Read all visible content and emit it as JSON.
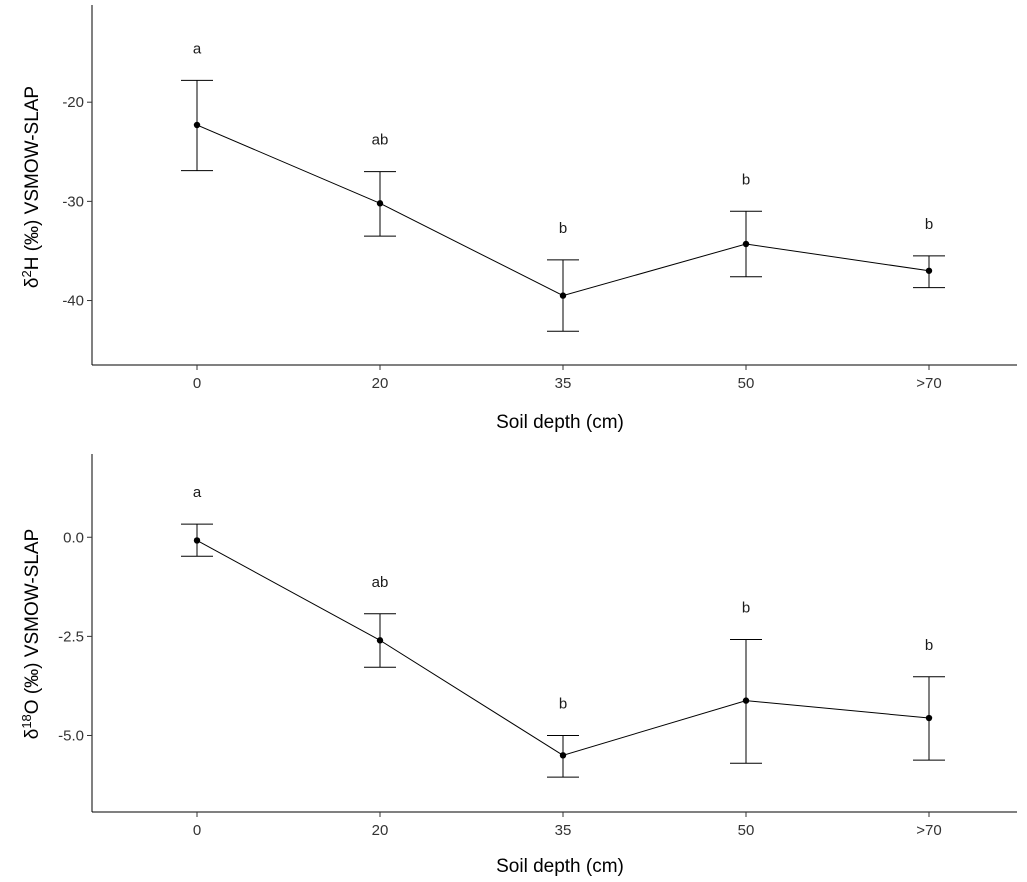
{
  "chart_data": [
    {
      "type": "line",
      "categories": [
        "0",
        "20",
        "35",
        "50",
        ">70"
      ],
      "values": [
        -22.3,
        -30.2,
        -39.5,
        -34.3,
        -37.0
      ],
      "error_upper": [
        -17.8,
        -27.0,
        -35.9,
        -31.0,
        -35.5
      ],
      "error_lower": [
        -26.9,
        -33.5,
        -43.1,
        -37.6,
        -38.7
      ],
      "significance_labels": [
        "a",
        "ab",
        "b",
        "b",
        "b"
      ],
      "xlabel": "Soil depth (cm)",
      "ylabel": {
        "prefix": "δ",
        "sup": "2",
        "rest": "H (‰) VSMOW-SLAP"
      },
      "yticks": [
        "-20",
        "-30",
        "-40"
      ],
      "ytick_values": [
        -20,
        -30,
        -40
      ],
      "ylim": [
        -46.5,
        -10.2
      ],
      "grid": false,
      "legend": "none"
    },
    {
      "type": "line",
      "categories": [
        "0",
        "20",
        "35",
        "50",
        ">70"
      ],
      "values": [
        -0.08,
        -2.6,
        -5.5,
        -4.12,
        -4.56
      ],
      "error_upper": [
        0.33,
        -1.93,
        -5.0,
        -2.58,
        -3.52
      ],
      "error_lower": [
        -0.48,
        -3.28,
        -6.05,
        -5.7,
        -5.62
      ],
      "significance_labels": [
        "a",
        "ab",
        "b",
        "b",
        "b"
      ],
      "xlabel": "Soil depth (cm)",
      "ylabel": {
        "prefix": "δ",
        "sup": "18",
        "rest": "O (‰) VSMOW-SLAP"
      },
      "yticks": [
        "0.0",
        "-2.5",
        "-5.0"
      ],
      "ytick_values": [
        0.0,
        -2.5,
        -5.0
      ],
      "ylim": [
        -6.93,
        2.1
      ],
      "grid": false,
      "legend": "none"
    }
  ]
}
